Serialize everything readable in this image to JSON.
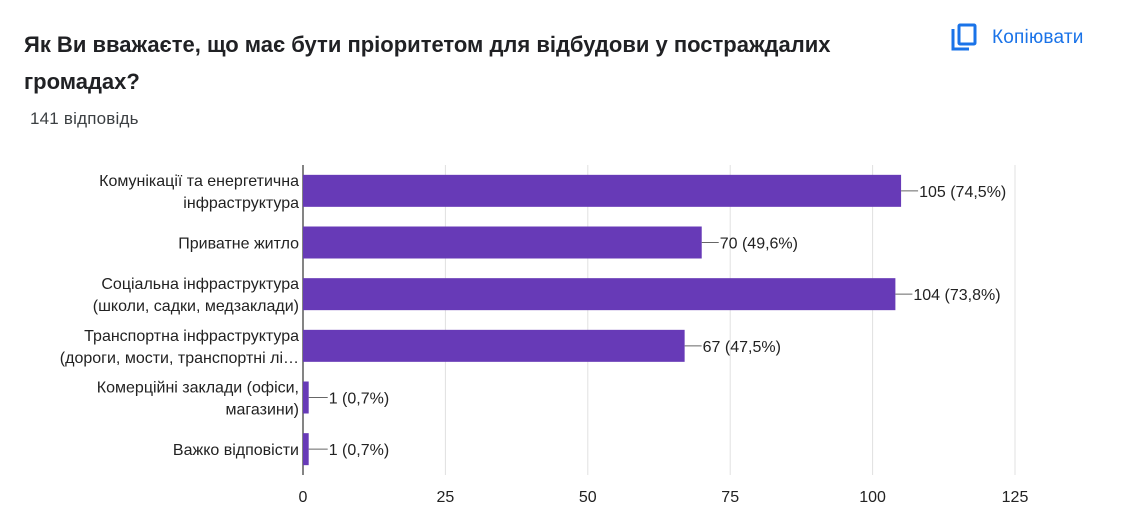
{
  "question": {
    "title": "Як Ви вважаєте, що має бути пріоритетом для відбудови у постраждалих громадах?",
    "response_count": "141 відповідь"
  },
  "toolbar": {
    "copy_label": "Копіювати",
    "copy_icon": "copy-icon"
  },
  "colors": {
    "bar": "#673ab7",
    "accent": "#1a73e8",
    "grid": "#e0e0e0",
    "axis": "#333333",
    "text": "#222222"
  },
  "chart_data": {
    "type": "bar",
    "orientation": "horizontal",
    "categories": [
      [
        "Комунікації та енергетична",
        "інфраструктура"
      ],
      [
        "Приватне житло"
      ],
      [
        "Соціальна інфраструктура",
        "(школи, садки, медзаклади)"
      ],
      [
        "Транспортна інфраструктура",
        "(дороги, мости, транспортні лі…"
      ],
      [
        "Комерційні заклади (офіси,",
        "магазини)"
      ],
      [
        "Важко відповісти"
      ]
    ],
    "values": [
      105,
      70,
      104,
      67,
      1,
      1
    ],
    "data_labels": [
      "105 (74,5%)",
      "70 (49,6%)",
      "104 (73,8%)",
      "67 (47,5%)",
      "1 (0,7%)",
      "1 (0,7%)"
    ],
    "xlim": [
      0,
      125
    ],
    "x_ticks": [
      "0",
      "25",
      "50",
      "75",
      "100",
      "125"
    ],
    "grid": true
  }
}
